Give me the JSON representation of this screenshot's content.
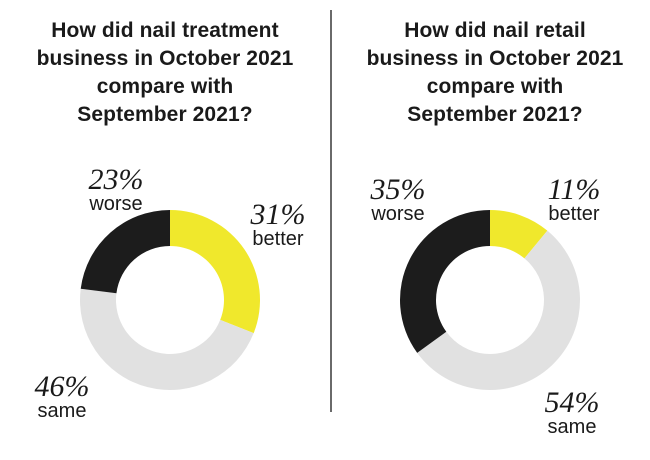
{
  "colors": {
    "better": "#f0e82c",
    "same": "#e1e1e1",
    "worse": "#1c1c1c"
  },
  "chart_data": [
    {
      "type": "pie",
      "title": "How did nail treatment business in October 2021 compare with September 2021?",
      "title_lines": [
        "How did nail treatment",
        "business in October 2021",
        "compare with",
        "September 2021?"
      ],
      "slices": [
        {
          "key": "better",
          "label": "better",
          "value": 31,
          "pct_label": "31%"
        },
        {
          "key": "same",
          "label": "same",
          "value": 46,
          "pct_label": "46%"
        },
        {
          "key": "worse",
          "label": "worse",
          "value": 23,
          "pct_label": "23%"
        }
      ]
    },
    {
      "type": "pie",
      "title": "How did nail retail business in October 2021 compare with September 2021?",
      "title_lines": [
        "How did nail retail",
        "business in October 2021",
        "compare with",
        "September 2021?"
      ],
      "slices": [
        {
          "key": "better",
          "label": "better",
          "value": 11,
          "pct_label": "11%"
        },
        {
          "key": "same",
          "label": "same",
          "value": 54,
          "pct_label": "54%"
        },
        {
          "key": "worse",
          "label": "worse",
          "value": 35,
          "pct_label": "35%"
        }
      ]
    }
  ]
}
